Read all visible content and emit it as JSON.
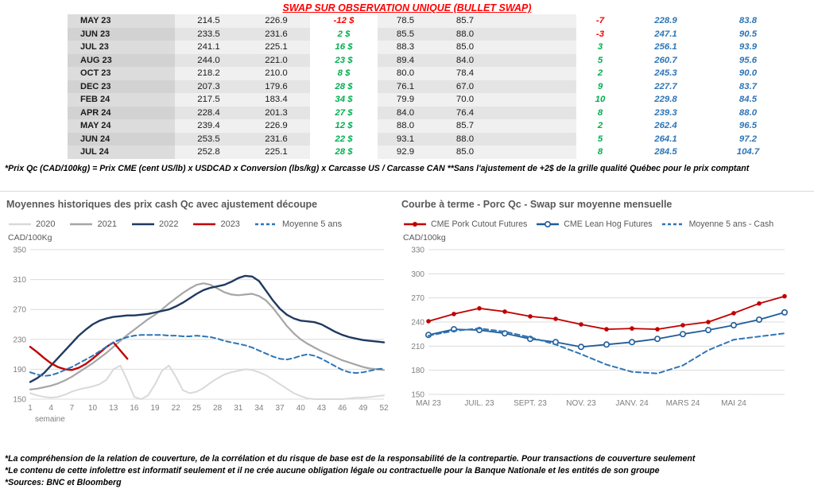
{
  "header": {
    "title": "SWAP SUR OBSERVATION UNIQUE (BULLET SWAP)"
  },
  "colors": {
    "title_red": "#ff0000",
    "positive_green": "#00b050",
    "negative_red": "#ff0000",
    "forward_blue": "#2e75b6"
  },
  "swap_table": {
    "rows": [
      {
        "month": "MAY 23",
        "qc_cash": "214.5",
        "qc_swap": "226.9",
        "qc_diff": "-12 $",
        "qc_diff_color": "neg",
        "us_cash": "78.5",
        "us_swap": "85.7",
        "us_diff": "-7",
        "us_diff_color": "neg",
        "fwd_cad": "228.9",
        "fwd_lb": "83.8"
      },
      {
        "month": "JUN 23",
        "qc_cash": "233.5",
        "qc_swap": "231.6",
        "qc_diff": "2 $",
        "qc_diff_color": "pos",
        "us_cash": "85.5",
        "us_swap": "88.0",
        "us_diff": "-3",
        "us_diff_color": "neg",
        "fwd_cad": "247.1",
        "fwd_lb": "90.5"
      },
      {
        "month": "JUL 23",
        "qc_cash": "241.1",
        "qc_swap": "225.1",
        "qc_diff": "16 $",
        "qc_diff_color": "pos",
        "us_cash": "88.3",
        "us_swap": "85.0",
        "us_diff": "3",
        "us_diff_color": "pos",
        "fwd_cad": "256.1",
        "fwd_lb": "93.9"
      },
      {
        "month": "AUG 23",
        "qc_cash": "244.0",
        "qc_swap": "221.0",
        "qc_diff": "23 $",
        "qc_diff_color": "pos",
        "us_cash": "89.4",
        "us_swap": "84.0",
        "us_diff": "5",
        "us_diff_color": "pos",
        "fwd_cad": "260.7",
        "fwd_lb": "95.6"
      },
      {
        "month": "OCT 23",
        "qc_cash": "218.2",
        "qc_swap": "210.0",
        "qc_diff": "8 $",
        "qc_diff_color": "pos",
        "us_cash": "80.0",
        "us_swap": "78.4",
        "us_diff": "2",
        "us_diff_color": "pos",
        "fwd_cad": "245.3",
        "fwd_lb": "90.0"
      },
      {
        "month": "DEC 23",
        "qc_cash": "207.3",
        "qc_swap": "179.6",
        "qc_diff": "28 $",
        "qc_diff_color": "pos",
        "us_cash": "76.1",
        "us_swap": "67.0",
        "us_diff": "9",
        "us_diff_color": "pos",
        "fwd_cad": "227.7",
        "fwd_lb": "83.7"
      },
      {
        "month": "FEB 24",
        "qc_cash": "217.5",
        "qc_swap": "183.4",
        "qc_diff": "34 $",
        "qc_diff_color": "pos",
        "us_cash": "79.9",
        "us_swap": "70.0",
        "us_diff": "10",
        "us_diff_color": "pos",
        "fwd_cad": "229.8",
        "fwd_lb": "84.5"
      },
      {
        "month": "APR 24",
        "qc_cash": "228.4",
        "qc_swap": "201.3",
        "qc_diff": "27 $",
        "qc_diff_color": "pos",
        "us_cash": "84.0",
        "us_swap": "76.4",
        "us_diff": "8",
        "us_diff_color": "pos",
        "fwd_cad": "239.3",
        "fwd_lb": "88.0"
      },
      {
        "month": "MAY 24",
        "qc_cash": "239.4",
        "qc_swap": "226.9",
        "qc_diff": "12 $",
        "qc_diff_color": "pos",
        "us_cash": "88.0",
        "us_swap": "85.7",
        "us_diff": "2",
        "us_diff_color": "pos",
        "fwd_cad": "262.4",
        "fwd_lb": "96.5"
      },
      {
        "month": "JUN 24",
        "qc_cash": "253.5",
        "qc_swap": "231.6",
        "qc_diff": "22 $",
        "qc_diff_color": "pos",
        "us_cash": "93.1",
        "us_swap": "88.0",
        "us_diff": "5",
        "us_diff_color": "pos",
        "fwd_cad": "264.1",
        "fwd_lb": "97.2"
      },
      {
        "month": "JUL 24",
        "qc_cash": "252.8",
        "qc_swap": "225.1",
        "qc_diff": "28 $",
        "qc_diff_color": "pos",
        "us_cash": "92.9",
        "us_swap": "85.0",
        "us_diff": "8",
        "us_diff_color": "pos",
        "fwd_cad": "284.5",
        "fwd_lb": "104.7"
      }
    ]
  },
  "table_footnote": "*Prix Qc (CAD/100kg) = Prix CME (cent US/lb) x USDCAD x Conversion (lbs/kg) x Carcasse US / Carcasse CAN **Sans l'ajustement de +2$ de la grille qualité Québec pour le prix comptant",
  "chart_data": [
    {
      "type": "line",
      "title": "Moyennes historiques des prix cash Qc avec ajustement découpe",
      "unit": "CAD/100Kg",
      "xlabel": "semaine",
      "ylim": [
        150,
        350
      ],
      "yticks": [
        150,
        190,
        230,
        270,
        310,
        350
      ],
      "xrange": [
        0,
        51
      ],
      "xticks": [
        {
          "x": 0,
          "label": "1"
        },
        {
          "x": 3,
          "label": "4"
        },
        {
          "x": 6,
          "label": "7"
        },
        {
          "x": 9,
          "label": "10"
        },
        {
          "x": 12,
          "label": "13"
        },
        {
          "x": 15,
          "label": "16"
        },
        {
          "x": 18,
          "label": "19"
        },
        {
          "x": 21,
          "label": "22"
        },
        {
          "x": 24,
          "label": "25"
        },
        {
          "x": 27,
          "label": "28"
        },
        {
          "x": 30,
          "label": "31"
        },
        {
          "x": 33,
          "label": "34"
        },
        {
          "x": 36,
          "label": "37"
        },
        {
          "x": 39,
          "label": "40"
        },
        {
          "x": 42,
          "label": "43"
        },
        {
          "x": 45,
          "label": "46"
        },
        {
          "x": 48,
          "label": "49"
        },
        {
          "x": 51,
          "label": "52"
        }
      ],
      "series": [
        {
          "name": "2020",
          "color": "#d9d9d9",
          "width": 2,
          "values": [
            158,
            155,
            153,
            152,
            153,
            156,
            160,
            163,
            165,
            167,
            170,
            176,
            190,
            195,
            175,
            153,
            150,
            155,
            170,
            188,
            195,
            180,
            162,
            158,
            160,
            165,
            172,
            178,
            183,
            186,
            188,
            190,
            189,
            186,
            182,
            176,
            170,
            164,
            158,
            154,
            151,
            150,
            150,
            150,
            150,
            150,
            151,
            152,
            152,
            153,
            154,
            155
          ]
        },
        {
          "name": "2021",
          "color": "#a6a6a6",
          "width": 2.2,
          "values": [
            163,
            164,
            166,
            168,
            171,
            175,
            180,
            186,
            192,
            198,
            205,
            212,
            220,
            228,
            236,
            243,
            250,
            257,
            263,
            270,
            278,
            285,
            292,
            298,
            303,
            305,
            303,
            298,
            293,
            290,
            289,
            290,
            291,
            288,
            282,
            272,
            260,
            248,
            238,
            230,
            224,
            219,
            214,
            210,
            206,
            202,
            199,
            196,
            193,
            191,
            190,
            189
          ]
        },
        {
          "name": "2022",
          "color": "#1f3a5f",
          "width": 2.4,
          "values": [
            173,
            178,
            185,
            195,
            205,
            215,
            225,
            235,
            243,
            250,
            255,
            258,
            260,
            261,
            262,
            262,
            263,
            264,
            266,
            268,
            270,
            274,
            279,
            285,
            291,
            296,
            299,
            301,
            303,
            307,
            312,
            315,
            314,
            308,
            295,
            282,
            271,
            263,
            258,
            255,
            254,
            253,
            250,
            245,
            240,
            236,
            233,
            231,
            229,
            228,
            227,
            226
          ]
        },
        {
          "name": "2023",
          "color": "#c00000",
          "width": 2.4,
          "values": [
            220,
            213,
            205,
            198,
            193,
            190,
            189,
            192,
            197,
            204,
            212,
            220,
            226,
            215,
            204,
            null,
            null,
            null,
            null,
            null,
            null,
            null,
            null,
            null,
            null,
            null,
            null,
            null,
            null,
            null,
            null,
            null,
            null,
            null,
            null,
            null,
            null,
            null,
            null,
            null,
            null,
            null,
            null,
            null,
            null,
            null,
            null,
            null,
            null,
            null,
            null,
            null
          ]
        },
        {
          "name": "Moyenne 5 ans",
          "color": "#2e75b6",
          "width": 2,
          "dash": "6 4",
          "values": [
            186,
            183,
            181,
            182,
            185,
            189,
            193,
            198,
            203,
            208,
            214,
            220,
            226,
            230,
            233,
            235,
            236,
            236,
            236,
            236,
            235,
            235,
            234,
            234,
            235,
            234,
            233,
            231,
            228,
            226,
            224,
            222,
            219,
            215,
            211,
            207,
            204,
            203,
            205,
            208,
            210,
            208,
            204,
            199,
            194,
            189,
            186,
            185,
            186,
            188,
            190,
            191
          ]
        }
      ]
    },
    {
      "type": "line",
      "title": "Courbe à terme - Porc Qc - Swap sur moyenne mensuelle",
      "unit": "CAD/100kg",
      "xlabel": "",
      "ylim": [
        150,
        330
      ],
      "yticks": [
        150,
        180,
        210,
        240,
        270,
        300,
        330
      ],
      "xrange": [
        0,
        14
      ],
      "xticks": [
        {
          "x": 0,
          "label": "MAI 23"
        },
        {
          "x": 2,
          "label": "JUIL. 23"
        },
        {
          "x": 4,
          "label": "SEPT. 23"
        },
        {
          "x": 6,
          "label": "NOV. 23"
        },
        {
          "x": 8,
          "label": "JANV. 24"
        },
        {
          "x": 10,
          "label": "MARS 24"
        },
        {
          "x": 12,
          "label": "MAI 24"
        }
      ],
      "series": [
        {
          "name": "CME Pork Cutout Futures",
          "color": "#c00000",
          "width": 1.8,
          "marker": "filled",
          "values": [
            241,
            250,
            257,
            253,
            247,
            244,
            237,
            231,
            232,
            231,
            236,
            240,
            251,
            263,
            272
          ]
        },
        {
          "name": "CME Lean Hog Futures",
          "color": "#1f5c99",
          "width": 1.8,
          "marker": "open",
          "values": [
            224,
            231,
            230,
            226,
            219,
            215,
            209,
            212,
            215,
            219,
            225,
            230,
            236,
            243,
            252
          ]
        },
        {
          "name": "Moyenne 5 ans - Cash",
          "color": "#2e75b6",
          "width": 2,
          "dash": "6 4",
          "values": [
            223,
            229,
            232,
            228,
            221,
            212,
            200,
            187,
            178,
            176,
            186,
            205,
            218,
            222,
            226
          ]
        }
      ]
    }
  ],
  "footnotes": [
    "*La compréhension de la relation de couverture, de la corrélation et du risque de base est de la responsabilité de la contrepartie. Pour transactions de couverture seulement",
    "*Le contenu de cette infolettre est informatif seulement et il ne crée aucune obligation légale ou contractuelle pour la Banque Nationale et les entités de son groupe",
    "*Sources: BNC et Bloomberg"
  ]
}
